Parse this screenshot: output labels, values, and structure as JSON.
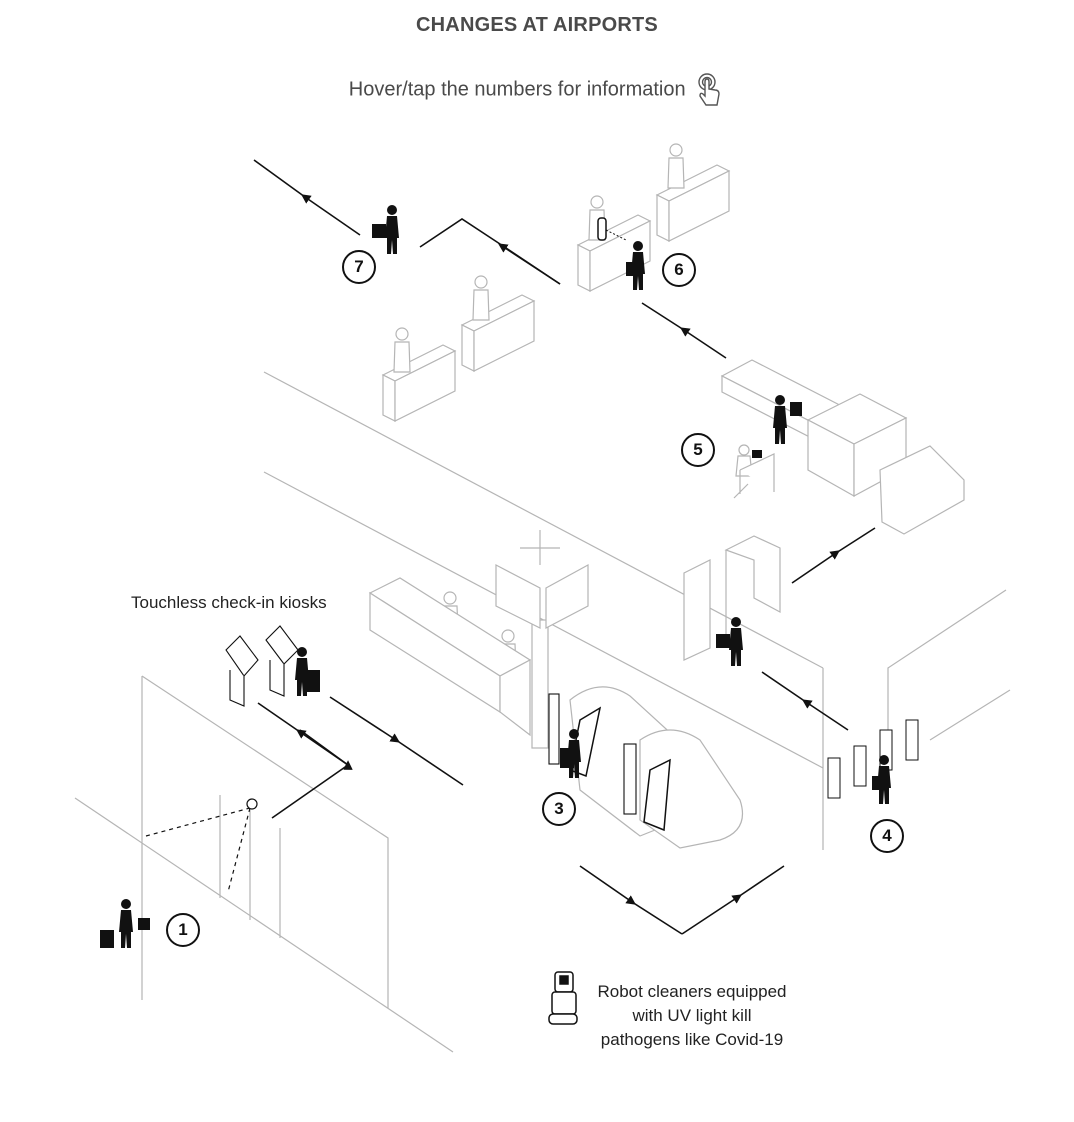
{
  "header": {
    "title": "CHANGES AT AIRPORTS",
    "subtitle": "Hover/tap the numbers for information"
  },
  "markers": [
    {
      "id": "marker-1",
      "label": "1"
    },
    {
      "id": "marker-3",
      "label": "3"
    },
    {
      "id": "marker-4",
      "label": "4"
    },
    {
      "id": "marker-5",
      "label": "5"
    },
    {
      "id": "marker-6",
      "label": "6"
    },
    {
      "id": "marker-7",
      "label": "7"
    }
  ],
  "labels": {
    "kiosks": "Touchless check-in kiosks",
    "robot_line1": "Robot cleaners equipped",
    "robot_line2": "with UV light kill",
    "robot_line3": "pathogens like Covid-19"
  },
  "icons": {
    "tap": "tap-hand-icon",
    "robot": "robot-cleaner-icon",
    "traveler": "traveler-silhouette-icon"
  },
  "colors": {
    "line": "#b5b5b5",
    "path": "#111111",
    "title": "#4a4a4a"
  }
}
